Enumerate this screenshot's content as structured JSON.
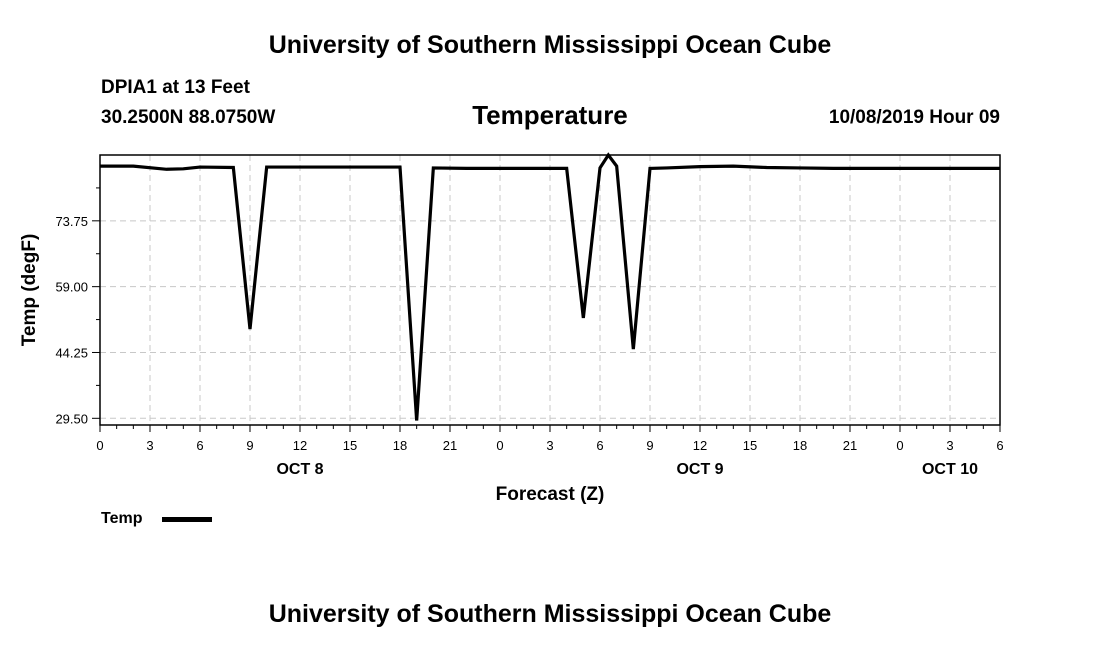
{
  "header": {
    "title": "University of Southern Mississippi Ocean Cube",
    "station": "DPIA1 at 13 Feet",
    "location": "30.2500N 88.0750W",
    "subtitle": "Temperature",
    "datetime": "10/08/2019 Hour 09"
  },
  "footer": {
    "title": "University of Southern Mississippi Ocean Cube"
  },
  "chart_data": {
    "type": "line",
    "title": "Temperature",
    "xlabel": "Forecast (Z)",
    "ylabel": "Temp (degF)",
    "ylim": [
      28,
      88.5
    ],
    "yticks": [
      29.5,
      44.25,
      59.0,
      73.75
    ],
    "ytick_labels": [
      "29.50",
      "44.25",
      "59.00",
      "73.75"
    ],
    "xlim": [
      0,
      54
    ],
    "xticks": [
      0,
      3,
      6,
      9,
      12,
      15,
      18,
      21,
      24,
      27,
      30,
      33,
      36,
      39,
      42,
      45,
      48,
      51,
      54
    ],
    "xtick_labels": [
      "0",
      "3",
      "6",
      "9",
      "12",
      "15",
      "18",
      "21",
      "0",
      "3",
      "6",
      "9",
      "12",
      "15",
      "18",
      "21",
      "0",
      "3",
      "6"
    ],
    "day_labels": [
      {
        "x": 12,
        "label": "OCT 8"
      },
      {
        "x": 36,
        "label": "OCT 9"
      },
      {
        "x": 51,
        "label": "OCT 10"
      }
    ],
    "grid": true,
    "legend_position": "bottom-left",
    "series": [
      {
        "name": "Temp",
        "color": "#000000",
        "x": [
          0,
          2,
          4,
          5,
          6,
          8,
          9,
          10,
          12,
          14,
          16,
          18,
          19,
          20,
          22,
          24,
          26,
          28,
          29,
          30,
          30.5,
          31,
          32,
          33,
          34,
          36,
          38,
          40,
          42,
          44,
          46,
          48,
          50,
          52,
          54
        ],
        "values": [
          86.0,
          86.0,
          85.3,
          85.4,
          85.8,
          85.7,
          49.5,
          85.8,
          85.8,
          85.8,
          85.8,
          85.8,
          29.0,
          85.6,
          85.5,
          85.5,
          85.5,
          85.5,
          52.0,
          85.6,
          88.5,
          86.0,
          45.0,
          85.5,
          85.6,
          85.9,
          86.0,
          85.7,
          85.6,
          85.5,
          85.5,
          85.5,
          85.5,
          85.5,
          85.5
        ]
      }
    ]
  }
}
